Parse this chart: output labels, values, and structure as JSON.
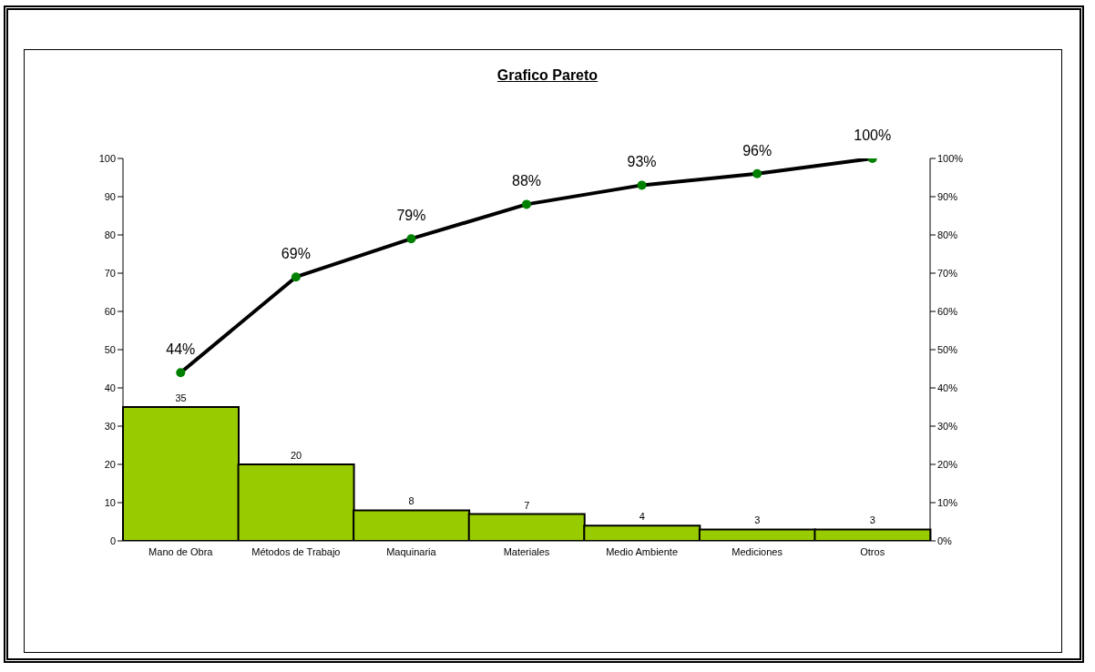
{
  "chart_data": {
    "type": "bar",
    "title": "Grafico Pareto",
    "categories": [
      "Mano de Obra",
      "Métodos de Trabajo",
      "Maquinaria",
      "Materiales",
      "Medio Ambiente",
      "Mediciones",
      "Otros"
    ],
    "series": [
      {
        "color": "#99cc00",
        "values": [
          35,
          20,
          8,
          7,
          4,
          3,
          3
        ],
        "data_labels": true
      },
      {
        "type": "line",
        "axis": "y2",
        "color": "#000000",
        "colors": [
          "#008000",
          "#008000",
          "#008000",
          "#008000",
          "#008000",
          "#008000",
          "#008000"
        ],
        "marker": "circle",
        "values": [
          44,
          69,
          79,
          88,
          93,
          96,
          100
        ],
        "value_labels": [
          "44%",
          "69%",
          "79%",
          "88%",
          "93%",
          "96%",
          "100%"
        ]
      }
    ],
    "ylim": [
      0,
      100
    ],
    "yticks": [
      0,
      10,
      20,
      30,
      40,
      50,
      60,
      70,
      80,
      90,
      100
    ],
    "y2lim": [
      0,
      100
    ],
    "y2ticks": [
      {
        "value": 0,
        "label": "0%"
      },
      {
        "value": 10,
        "label": "10%"
      },
      {
        "value": 20,
        "label": "20%"
      },
      {
        "value": 30,
        "label": "30%"
      },
      {
        "value": 40,
        "label": "40%"
      },
      {
        "value": 50,
        "label": "50%"
      },
      {
        "value": 60,
        "label": "60%"
      },
      {
        "value": 70,
        "label": "70%"
      },
      {
        "value": 80,
        "label": "80%"
      },
      {
        "value": 90,
        "label": "90%"
      },
      {
        "value": 100,
        "label": "100%"
      }
    ],
    "grid": false,
    "legend": false
  }
}
